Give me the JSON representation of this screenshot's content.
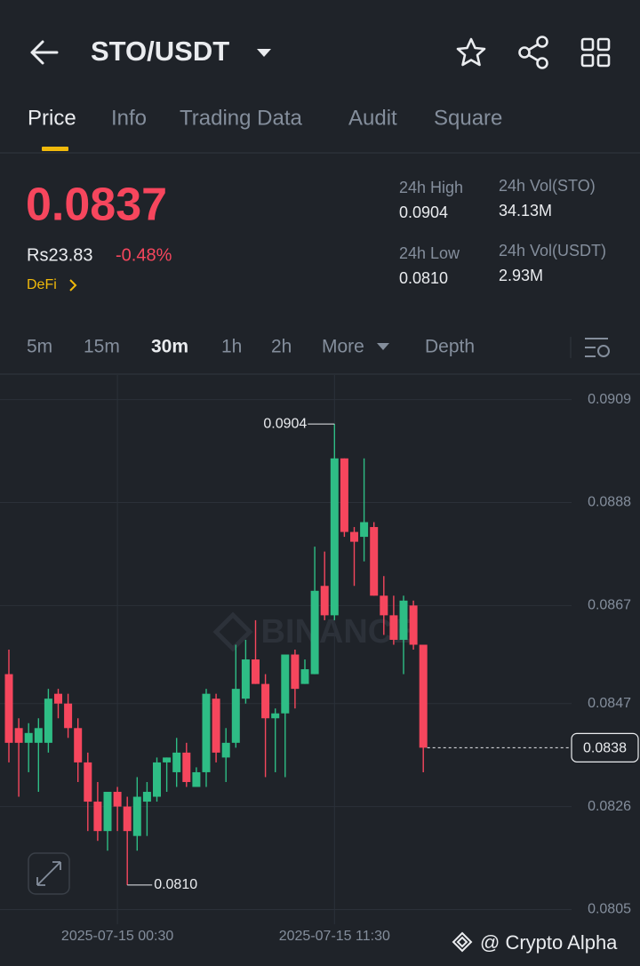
{
  "header": {
    "title": "STO/USDT"
  },
  "tabs": [
    "Price",
    "Info",
    "Trading Data",
    "Audit",
    "Square"
  ],
  "ticker": {
    "price": "0.0837",
    "fiat": "Rs23.83",
    "change": "-0.48%",
    "sector": "DeFi"
  },
  "stats": [
    {
      "label": "24h High",
      "value": "0.0904"
    },
    {
      "label": "24h Vol(STO)",
      "value": "34.13M"
    },
    {
      "label": "24h Low",
      "value": "0.0810"
    },
    {
      "label": "24h Vol(USDT)",
      "value": "2.93M"
    }
  ],
  "intervals": [
    "5m",
    "15m",
    "30m",
    "1h",
    "2h",
    "More"
  ],
  "depth": "Depth",
  "watermark": "BINANCE",
  "credit": "@ Crypto Alpha",
  "chart_data": {
    "type": "candlestick",
    "categories": [
      null,
      null,
      null,
      null,
      null,
      null,
      null,
      null,
      null,
      null,
      null,
      "2025-07-15 00:30",
      null,
      null,
      null,
      null,
      null,
      null,
      null,
      null,
      null,
      null,
      null,
      null,
      null,
      null,
      null,
      null,
      null,
      null,
      null,
      null,
      null,
      "2025-07-15 11:30",
      null,
      null,
      null,
      null,
      null,
      null,
      null,
      null,
      null
    ],
    "open": [
      0.0853,
      0.0842,
      0.0839,
      0.0839,
      0.0839,
      0.0849,
      0.0847,
      0.0842,
      0.0835,
      0.0827,
      0.0821,
      0.0829,
      0.0826,
      0.082,
      0.0827,
      0.0828,
      0.0835,
      0.0833,
      0.0837,
      0.083,
      0.0833,
      0.0848,
      0.0836,
      0.0839,
      0.0848,
      0.0856,
      0.0851,
      0.0844,
      0.0845,
      0.0857,
      0.0851,
      0.0853,
      0.0871,
      0.0865,
      0.0897,
      0.0882,
      0.0881,
      0.0883,
      0.0869,
      0.0865,
      0.086,
      0.0867,
      0.0859
    ],
    "high": [
      0.0858,
      0.0844,
      0.0843,
      0.0844,
      0.085,
      0.085,
      0.0849,
      0.0844,
      0.0837,
      0.0831,
      0.0829,
      0.083,
      0.0828,
      0.0832,
      0.0831,
      0.0836,
      0.0836,
      0.084,
      0.0839,
      0.0834,
      0.085,
      0.0849,
      0.0842,
      0.0859,
      0.086,
      0.0864,
      0.0853,
      0.0846,
      0.0857,
      0.0858,
      0.0856,
      0.0879,
      0.0878,
      0.0904,
      0.0897,
      0.0883,
      0.0897,
      0.0884,
      0.0873,
      0.0869,
      0.0869,
      0.0868,
      0.0859
    ],
    "low": [
      0.0835,
      0.0828,
      0.0833,
      0.0829,
      0.0837,
      0.0844,
      0.084,
      0.0831,
      0.0821,
      0.0819,
      0.0817,
      0.0821,
      0.081,
      0.0817,
      0.082,
      0.0827,
      0.0829,
      0.083,
      0.083,
      0.083,
      0.083,
      0.0835,
      0.0831,
      0.0838,
      0.0847,
      0.0851,
      0.0832,
      0.0833,
      0.0832,
      0.0846,
      0.0851,
      0.0853,
      0.0864,
      0.0864,
      0.0881,
      0.0871,
      0.0876,
      0.0869,
      0.0861,
      0.0859,
      0.0853,
      0.0858,
      0.0833
    ],
    "close": [
      0.0839,
      0.0839,
      0.0841,
      0.0842,
      0.0848,
      0.0847,
      0.0842,
      0.0835,
      0.0827,
      0.0821,
      0.0829,
      0.0826,
      0.0821,
      0.0828,
      0.0829,
      0.0835,
      0.0836,
      0.0837,
      0.0831,
      0.0833,
      0.0849,
      0.0837,
      0.0839,
      0.085,
      0.0856,
      0.0851,
      0.0844,
      0.0845,
      0.0857,
      0.085,
      0.0854,
      0.087,
      0.0865,
      0.0897,
      0.0882,
      0.088,
      0.0884,
      0.0869,
      0.0865,
      0.086,
      0.0868,
      0.0859,
      0.0838
    ],
    "up_color": "#2ebd85",
    "down_color": "#f6465d",
    "ylim": [
      0.0802,
      0.0914
    ],
    "yticks": [
      0.0909,
      0.0888,
      0.0867,
      0.0847,
      0.0826,
      0.0805
    ],
    "grid": true,
    "last_price": 0.0838,
    "annotations": [
      {
        "value": 0.0904,
        "label": "0.0904"
      },
      {
        "value": 0.081,
        "label": "0.0810"
      }
    ]
  }
}
